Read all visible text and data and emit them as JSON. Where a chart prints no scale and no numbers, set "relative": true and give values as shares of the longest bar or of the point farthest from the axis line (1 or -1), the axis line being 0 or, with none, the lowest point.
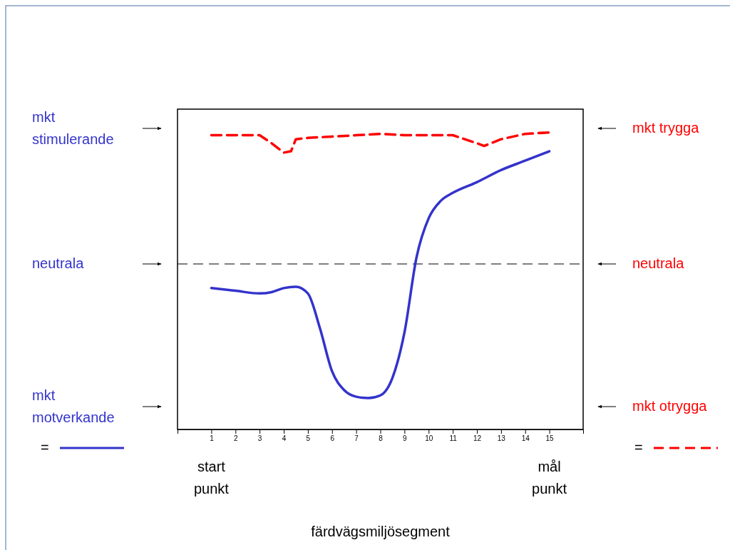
{
  "chart_data": {
    "type": "line",
    "relative": true,
    "xlim": [
      -0.4,
      16.4
    ],
    "xticks": [
      1,
      2,
      3,
      4,
      5,
      6,
      7,
      8,
      9,
      10,
      11,
      12,
      13,
      14,
      15
    ],
    "ref_lines": [
      {
        "axis": "y",
        "value": 0,
        "color": "#000000",
        "line_style": "dashed"
      }
    ],
    "annotations": [
      "mkt\nstimulerande",
      "neutrala",
      "mkt\nmotverkande",
      "mkt trygga",
      "neutrala",
      "mkt otrygga",
      "start\npunkt",
      "mål\npunkt",
      "färdvägsmiljösegment"
    ],
    "legend": "bottom",
    "series": [
      {
        "name": "=",
        "color": "#3333cc",
        "line_style": "solid",
        "x": [
          1,
          2,
          3,
          3.5,
          4,
          4.5,
          5,
          5.5,
          6,
          6.5,
          7,
          7.5,
          8,
          8.5,
          9,
          9.5,
          10,
          10.5,
          11,
          12,
          13,
          14,
          15
        ],
        "values": [
          -0.18,
          -0.2,
          -0.22,
          -0.21,
          -0.18,
          -0.17,
          -0.22,
          -0.48,
          -0.8,
          -0.94,
          -0.99,
          -1,
          -0.98,
          -0.85,
          -0.51,
          0.05,
          0.34,
          0.47,
          0.53,
          0.61,
          0.7,
          0.77,
          0.84
        ]
      },
      {
        "name": "=",
        "color": "#ff0000",
        "line_style": "dashed",
        "x": [
          1,
          2,
          3,
          3.5,
          4,
          4.3,
          4.5,
          5,
          6,
          7,
          8,
          9,
          10,
          11,
          12,
          12.3,
          13,
          14,
          15
        ],
        "values": [
          0.96,
          0.96,
          0.96,
          0.9,
          0.83,
          0.84,
          0.93,
          0.94,
          0.95,
          0.96,
          0.97,
          0.96,
          0.96,
          0.96,
          0.9,
          0.88,
          0.93,
          0.97,
          0.98
        ]
      }
    ]
  }
}
